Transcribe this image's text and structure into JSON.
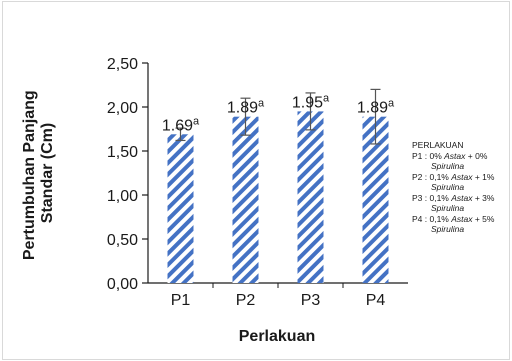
{
  "chart_data": {
    "type": "bar",
    "categories": [
      "P1",
      "P2",
      "P3",
      "P4"
    ],
    "values": [
      1.69,
      1.89,
      1.95,
      1.89
    ],
    "errors": [
      0.07,
      0.21,
      0.21,
      0.31
    ],
    "data_labels": [
      "1.69",
      "1.89",
      "1.95",
      "1.89"
    ],
    "label_superscripts": [
      "a",
      "a",
      "a",
      "a"
    ],
    "xlabel": "Perlakuan",
    "ylabel": "Pertumbuhan Panjang Standar (Cm)",
    "ylim": [
      0,
      2.5
    ],
    "yticks": [
      "0,00",
      "0,50",
      "1,00",
      "1,50",
      "2,00",
      "2,50"
    ],
    "bar_color": "#4472c4",
    "bar_pattern": "diagonal-stripes",
    "grid": false,
    "legend": {
      "title": "PERLAKUAN",
      "entries": [
        {
          "code": "P1 :",
          "line1_a": "0% ",
          "line1_b": "Astax",
          "line1_c": " + 0%",
          "line2": "Spirulina"
        },
        {
          "code": "P2 :",
          "line1_a": "0,1% ",
          "line1_b": "Astax",
          "line1_c": " + 1%",
          "line2": "Spirulina"
        },
        {
          "code": "P3 :",
          "line1_a": "0,1% ",
          "line1_b": "Astax",
          "line1_c": " + 3%",
          "line2": "Spirulina"
        },
        {
          "code": "P4 :",
          "line1_a": "0,1% ",
          "line1_b": "Astax",
          "line1_c": " + 5%",
          "line2": "Spirulina"
        }
      ],
      "position": "right"
    }
  }
}
